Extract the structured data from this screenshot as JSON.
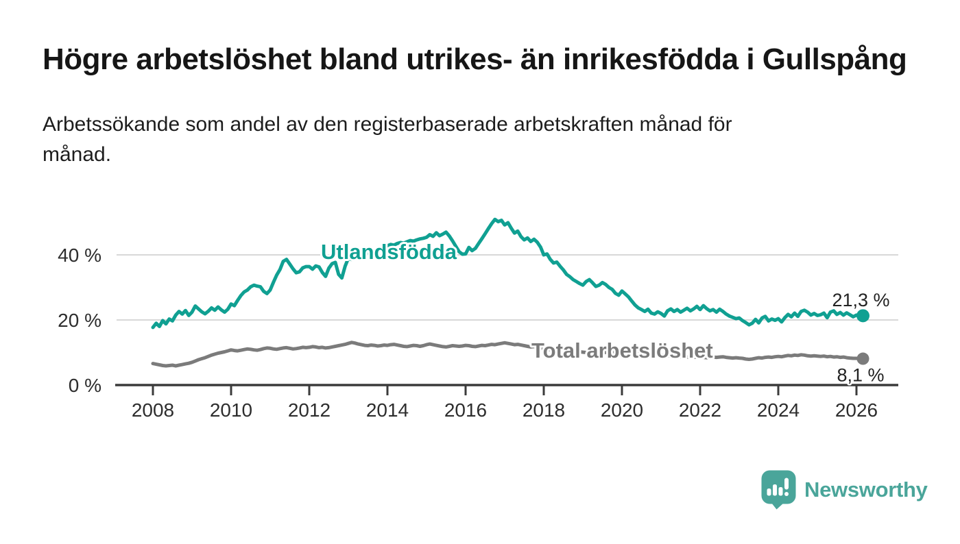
{
  "header": {
    "title": "Högre arbetslöshet bland utrikes- än inrikesfödda i Gullspång",
    "subtitle_lines": [
      "Arbetssökande som andel av den registerbaserade arbetskraften månad för",
      "månad."
    ]
  },
  "branding": {
    "logo_text": "Newsworthy",
    "logo_icon": "newsworthy-speech-bubble-bar-chart-icon",
    "logo_color": "#4aa59a"
  },
  "chart_data": {
    "type": "line",
    "title": "Högre arbetslöshet bland utrikes- än inrikesfödda i Gullspång",
    "subtitle": "Arbetssökande som andel av den registerbaserade arbetskraften månad för månad.",
    "unit": "%",
    "grid": "horizontal",
    "x": {
      "frequency": "monthly",
      "start_year": 2008,
      "start_month": 1,
      "end_year": 2026,
      "end_month": 3,
      "tick_years": [
        2008,
        2010,
        2012,
        2014,
        2016,
        2018,
        2020,
        2022,
        2024,
        2026
      ]
    },
    "y": {
      "range": [
        0,
        55
      ],
      "ticks": [
        {
          "value": 0,
          "label": "0 %"
        },
        {
          "value": 20,
          "label": "20 %"
        },
        {
          "value": 40,
          "label": "40 %"
        }
      ]
    },
    "series": [
      {
        "name": "Utlandsfödda",
        "color": "#10a092",
        "end_label": "21,3 %",
        "end_value": 21.3,
        "values": [
          17.7,
          19.0,
          18.0,
          19.8,
          18.8,
          20.3,
          19.7,
          21.5,
          22.6,
          21.8,
          22.9,
          21.4,
          22.4,
          24.3,
          23.4,
          22.5,
          21.9,
          22.7,
          23.7,
          23.0,
          24.0,
          23.1,
          22.4,
          23.3,
          24.9,
          24.4,
          26.0,
          27.5,
          28.6,
          29.2,
          30.2,
          30.7,
          30.4,
          30.2,
          28.8,
          28.1,
          29.2,
          31.6,
          33.8,
          35.5,
          38.0,
          38.6,
          37.2,
          35.7,
          34.5,
          34.8,
          36.0,
          36.4,
          36.4,
          35.6,
          36.6,
          36.3,
          34.6,
          33.4,
          35.9,
          37.3,
          37.7,
          34.0,
          32.9,
          36.5,
          39.0,
          38.6,
          39.4,
          39.1,
          39.6,
          40.1,
          40.6,
          41.0,
          41.4,
          41.8,
          42.1,
          42.5,
          42.8,
          43.2,
          43.0,
          43.5,
          43.8,
          43.6,
          44.0,
          44.4,
          44.2,
          44.6,
          44.9,
          45.1,
          45.4,
          46.2,
          45.7,
          46.8,
          45.9,
          46.4,
          47.0,
          45.8,
          44.3,
          42.6,
          41.0,
          40.2,
          40.3,
          42.3,
          41.3,
          42.0,
          43.5,
          45.0,
          46.5,
          48.1,
          49.6,
          50.9,
          50.2,
          50.6,
          49.2,
          49.9,
          48.2,
          46.7,
          47.3,
          45.6,
          44.6,
          45.2,
          44.1,
          44.8,
          43.9,
          42.4,
          40.0,
          40.3,
          38.6,
          37.5,
          37.8,
          36.5,
          35.4,
          34.0,
          33.3,
          32.4,
          31.8,
          31.2,
          30.7,
          31.8,
          32.4,
          31.4,
          30.3,
          30.7,
          31.5,
          30.9,
          30.0,
          29.4,
          28.2,
          27.6,
          28.9,
          28.0,
          27.1,
          25.8,
          24.6,
          23.7,
          23.2,
          22.6,
          23.3,
          22.1,
          21.8,
          22.5,
          22.0,
          21.2,
          22.8,
          23.4,
          22.6,
          23.2,
          22.4,
          23.0,
          23.6,
          22.8,
          23.4,
          24.2,
          23.2,
          24.4,
          23.5,
          22.8,
          23.2,
          22.4,
          23.3,
          22.6,
          21.8,
          21.2,
          20.8,
          20.4,
          20.6,
          19.8,
          19.2,
          18.5,
          19.0,
          20.2,
          19.1,
          20.6,
          21.1,
          19.7,
          20.3,
          19.9,
          20.4,
          19.4,
          20.7,
          21.7,
          21.0,
          22.1,
          21.1,
          22.6,
          23.0,
          22.4,
          21.5,
          22.0,
          21.4,
          21.6,
          22.1,
          20.7,
          22.4,
          22.8,
          21.7,
          22.3,
          21.5,
          22.2,
          21.6,
          21.0,
          21.5,
          21.2,
          21.3
        ]
      },
      {
        "name": "Total arbetslöshet",
        "color": "#7b7b7b",
        "end_label": "8,1 %",
        "end_value": 8.1,
        "values": [
          6.6,
          6.4,
          6.2,
          6.0,
          5.9,
          6.0,
          6.1,
          5.9,
          6.1,
          6.3,
          6.5,
          6.7,
          7.0,
          7.4,
          7.8,
          8.1,
          8.4,
          8.8,
          9.2,
          9.5,
          9.8,
          10.0,
          10.2,
          10.5,
          10.8,
          10.6,
          10.5,
          10.7,
          10.9,
          11.1,
          11.0,
          10.8,
          10.7,
          10.9,
          11.2,
          11.4,
          11.3,
          11.1,
          11.0,
          11.2,
          11.4,
          11.5,
          11.3,
          11.1,
          11.2,
          11.4,
          11.6,
          11.5,
          11.6,
          11.8,
          11.7,
          11.5,
          11.6,
          11.4,
          11.5,
          11.7,
          11.9,
          12.1,
          12.3,
          12.5,
          12.8,
          13.1,
          12.9,
          12.6,
          12.4,
          12.2,
          12.1,
          12.3,
          12.2,
          12.0,
          12.1,
          12.3,
          12.2,
          12.4,
          12.5,
          12.3,
          12.1,
          11.9,
          11.8,
          12.0,
          12.2,
          12.1,
          11.9,
          12.1,
          12.4,
          12.6,
          12.4,
          12.2,
          12.0,
          11.8,
          11.7,
          11.9,
          12.1,
          12.0,
          11.9,
          12.0,
          12.2,
          12.1,
          11.9,
          11.8,
          12.0,
          12.2,
          12.1,
          12.3,
          12.5,
          12.4,
          12.6,
          12.8,
          13.0,
          12.8,
          12.6,
          12.4,
          12.5,
          12.3,
          12.1,
          11.9,
          11.7,
          11.8,
          11.6,
          11.4,
          11.2,
          11.0,
          10.9,
          10.8,
          10.7,
          10.6,
          10.5,
          10.4,
          10.3,
          10.4,
          10.3,
          10.2,
          10.1,
          10.0,
          10.0,
          9.9,
          9.9,
          10.0,
          10.1,
          10.0,
          10.1,
          10.2,
          10.3,
          10.4,
          10.6,
          10.5,
          10.8,
          11.0,
          10.8,
          10.5,
          10.2,
          10.0,
          9.8,
          9.6,
          9.4,
          9.3,
          9.2,
          9.1,
          9.0,
          8.9,
          8.8,
          8.8,
          8.7,
          8.6,
          8.6,
          8.5,
          8.5,
          8.6,
          8.6,
          8.5,
          8.4,
          8.5,
          8.6,
          8.5,
          8.6,
          8.7,
          8.5,
          8.4,
          8.3,
          8.4,
          8.3,
          8.2,
          8.0,
          7.9,
          8.0,
          8.2,
          8.4,
          8.3,
          8.5,
          8.6,
          8.5,
          8.7,
          8.8,
          8.7,
          8.9,
          9.1,
          9.0,
          9.2,
          9.1,
          9.3,
          9.2,
          9.0,
          8.9,
          9.0,
          8.9,
          8.8,
          8.9,
          8.7,
          8.8,
          8.6,
          8.7,
          8.5,
          8.6,
          8.4,
          8.3,
          8.2,
          8.2,
          8.1,
          8.1
        ]
      }
    ],
    "layout_hints": {
      "legend": "inline-labels-on-lines",
      "axis_color": "#3b3b3b",
      "gridline_color": "#d8d8d8"
    }
  }
}
